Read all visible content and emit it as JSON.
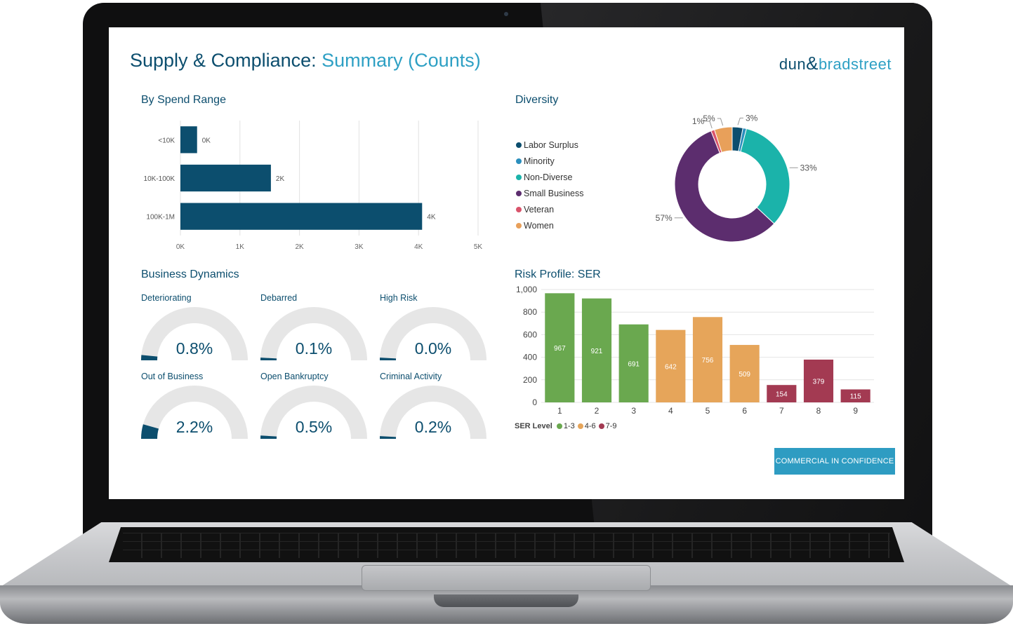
{
  "header": {
    "title_main": "Supply & Compliance:",
    "title_accent": "Summary (Counts)",
    "logo_left": "dun",
    "logo_amp": "&",
    "logo_right": "bradstreet"
  },
  "spend": {
    "title": "By Spend Range",
    "chart_data": {
      "type": "bar",
      "orientation": "horizontal",
      "categories": [
        "<10K",
        "10K-100K",
        "100K-1M"
      ],
      "values": [
        280,
        1520,
        4060
      ],
      "data_labels": [
        "0K",
        "2K",
        "4K"
      ],
      "xlim": [
        0,
        5000
      ],
      "x_ticks": [
        "0K",
        "1K",
        "2K",
        "3K",
        "4K",
        "5K"
      ],
      "grid": true,
      "color": "#0c4e6e"
    }
  },
  "diversity": {
    "title": "Diversity",
    "chart_data": {
      "type": "pie",
      "donut": true,
      "labels": [
        "Labor Surplus",
        "Minority",
        "Non-Diverse",
        "Small Business",
        "Veteran",
        "Women"
      ],
      "values": [
        3,
        1,
        33,
        57,
        1,
        5
      ],
      "colors": [
        "#0c4e6e",
        "#2b8fbd",
        "#1bb3aa",
        "#5c2d6e",
        "#d9546b",
        "#e8a05a"
      ],
      "data_labels": [
        "3%",
        "",
        "33%",
        "57%",
        "1%",
        "5%"
      ]
    }
  },
  "dynamics": {
    "title": "Business Dynamics",
    "gauges": [
      {
        "label": "Deteriorating",
        "value": "0.8%",
        "fraction": 0.008
      },
      {
        "label": "Debarred",
        "value": "0.1%",
        "fraction": 0.001
      },
      {
        "label": "High Risk",
        "value": "0.0%",
        "fraction": 0.0
      },
      {
        "label": "Out of Business",
        "value": "2.2%",
        "fraction": 0.022
      },
      {
        "label": "Open Bankruptcy",
        "value": "0.5%",
        "fraction": 0.005
      },
      {
        "label": "Criminal Activity",
        "value": "0.2%",
        "fraction": 0.002
      }
    ]
  },
  "risk": {
    "title": "Risk Profile: SER",
    "chart_data": {
      "type": "bar",
      "categories": [
        "1",
        "2",
        "3",
        "4",
        "5",
        "6",
        "7",
        "8",
        "9"
      ],
      "values": [
        967,
        921,
        691,
        642,
        756,
        509,
        154,
        379,
        115
      ],
      "groups": [
        "1-3",
        "1-3",
        "1-3",
        "4-6",
        "4-6",
        "4-6",
        "7-9",
        "7-9",
        "7-9"
      ],
      "ylim": [
        0,
        1000
      ],
      "y_ticks": [
        "0",
        "200",
        "400",
        "600",
        "800",
        "1,000"
      ],
      "grid": true
    },
    "legend_title": "SER Level",
    "legend": [
      {
        "label": "1-3",
        "color": "#6aa84f"
      },
      {
        "label": "4-6",
        "color": "#e6a55a"
      },
      {
        "label": "7-9",
        "color": "#a33a52"
      }
    ]
  },
  "footer": {
    "confidence_label": "COMMERCIAL IN CONFIDENCE"
  }
}
